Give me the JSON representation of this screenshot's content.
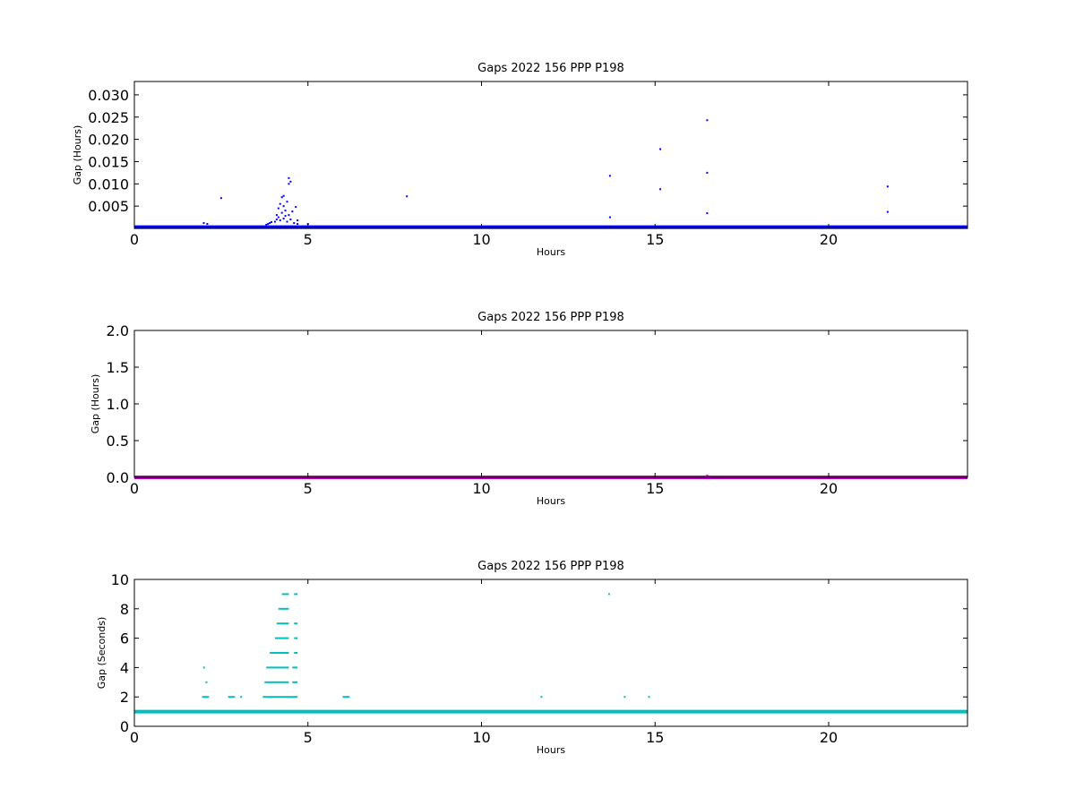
{
  "chart_data": [
    {
      "type": "scatter",
      "title": "Gaps 2022 156 PPP  P198",
      "xlabel": "Hours",
      "ylabel": "Gap (Hours)",
      "xlim": [
        0,
        24
      ],
      "ylim": [
        0.0,
        0.033
      ],
      "xticks": [
        "0",
        "5",
        "10",
        "15",
        "20"
      ],
      "xtick_values": [
        0,
        5,
        10,
        15,
        20
      ],
      "yticks": [
        "0.005",
        "0.010",
        "0.015",
        "0.020",
        "0.025",
        "0.030"
      ],
      "ytick_values": [
        0.005,
        0.01,
        0.015,
        0.02,
        0.025,
        0.03
      ],
      "color": "#0000ff",
      "baseline": {
        "y": 0.00028,
        "x_start": 0,
        "x_end": 24
      },
      "series": [
        {
          "points": [
            [
              2.0,
              0.0012
            ],
            [
              2.1,
              0.001
            ],
            [
              2.5,
              0.0068
            ],
            [
              3.8,
              0.0008
            ],
            [
              3.85,
              0.001
            ],
            [
              3.9,
              0.0012
            ],
            [
              3.95,
              0.0014
            ],
            [
              4.05,
              0.0015
            ],
            [
              4.1,
              0.002
            ],
            [
              4.1,
              0.003
            ],
            [
              4.15,
              0.0025
            ],
            [
              4.15,
              0.0045
            ],
            [
              4.2,
              0.0018
            ],
            [
              4.2,
              0.0055
            ],
            [
              4.25,
              0.0035
            ],
            [
              4.25,
              0.007
            ],
            [
              4.3,
              0.0022
            ],
            [
              4.3,
              0.005
            ],
            [
              4.3,
              0.0073
            ],
            [
              4.35,
              0.0028
            ],
            [
              4.35,
              0.004
            ],
            [
              4.4,
              0.0015
            ],
            [
              4.4,
              0.006
            ],
            [
              4.45,
              0.01
            ],
            [
              4.45,
              0.003
            ],
            [
              4.5,
              0.0105
            ],
            [
              4.5,
              0.002
            ],
            [
              4.45,
              0.0113
            ],
            [
              4.55,
              0.0038
            ],
            [
              4.6,
              0.0012
            ],
            [
              4.65,
              0.0048
            ],
            [
              4.7,
              0.0018
            ],
            [
              4.7,
              0.001
            ],
            [
              5.0,
              0.001
            ],
            [
              7.85,
              0.0072
            ],
            [
              13.7,
              0.0118
            ],
            [
              13.7,
              0.0025
            ],
            [
              15.15,
              0.0178
            ],
            [
              15.15,
              0.0088
            ],
            [
              16.5,
              0.0243
            ],
            [
              16.5,
              0.0125
            ],
            [
              16.5,
              0.0034
            ],
            [
              21.7,
              0.0094
            ],
            [
              21.7,
              0.0037
            ]
          ]
        }
      ]
    },
    {
      "type": "scatter",
      "title": "Gaps 2022 156 PPP  P198",
      "xlabel": "Hours",
      "ylabel": "Gap (Hours)",
      "xlim": [
        0,
        24
      ],
      "ylim": [
        0.0,
        2.0
      ],
      "xticks": [
        "0",
        "5",
        "10",
        "15",
        "20"
      ],
      "xtick_values": [
        0,
        5,
        10,
        15,
        20
      ],
      "yticks": [
        "0.0",
        "0.5",
        "1.0",
        "1.5",
        "2.0"
      ],
      "ytick_values": [
        0.0,
        0.5,
        1.0,
        1.5,
        2.0
      ],
      "color": "#bf00bf",
      "baseline": {
        "y": 0.0003,
        "x_start": 0,
        "x_end": 24
      },
      "series": [
        {
          "points": [
            [
              4.4,
              0.0113
            ],
            [
              7.85,
              0.0072
            ],
            [
              16.5,
              0.0243
            ]
          ]
        }
      ]
    },
    {
      "type": "scatter",
      "title": "Gaps 2022 156 PPP  P198",
      "xlabel": "Hours",
      "ylabel": "Gap (Seconds)",
      "xlim": [
        0,
        24
      ],
      "ylim": [
        0,
        10
      ],
      "xticks": [
        "0",
        "5",
        "10",
        "15",
        "20"
      ],
      "xtick_values": [
        0,
        5,
        10,
        15,
        20
      ],
      "yticks": [
        "0",
        "2",
        "4",
        "6",
        "8",
        "10"
      ],
      "ytick_values": [
        0,
        2,
        4,
        6,
        8,
        10
      ],
      "color": "#00bfbf",
      "baseline": {
        "y": 1,
        "x_start": 0,
        "x_end": 24
      },
      "series": [
        {
          "segments": [
            [
              1.95,
              2.15,
              2
            ],
            [
              2.7,
              2.9,
              2
            ],
            [
              3.05,
              3.1,
              2
            ],
            [
              3.7,
              4.7,
              2
            ],
            [
              6.0,
              6.2,
              2
            ],
            [
              11.7,
              11.75,
              2
            ],
            [
              14.1,
              14.15,
              2
            ],
            [
              14.8,
              14.85,
              2
            ],
            [
              3.75,
              4.45,
              3
            ],
            [
              2.05,
              2.1,
              3
            ],
            [
              4.55,
              4.7,
              3
            ],
            [
              3.8,
              4.45,
              4
            ],
            [
              1.98,
              2.03,
              4
            ],
            [
              4.55,
              4.7,
              4
            ],
            [
              3.9,
              4.45,
              5
            ],
            [
              4.6,
              4.7,
              5
            ],
            [
              4.05,
              4.45,
              6
            ],
            [
              4.6,
              4.7,
              6
            ],
            [
              4.1,
              4.45,
              7
            ],
            [
              4.6,
              4.7,
              7
            ],
            [
              4.15,
              4.45,
              8
            ],
            [
              4.25,
              4.45,
              9
            ],
            [
              4.6,
              4.7,
              9
            ],
            [
              13.65,
              13.7,
              9
            ]
          ]
        }
      ]
    }
  ]
}
